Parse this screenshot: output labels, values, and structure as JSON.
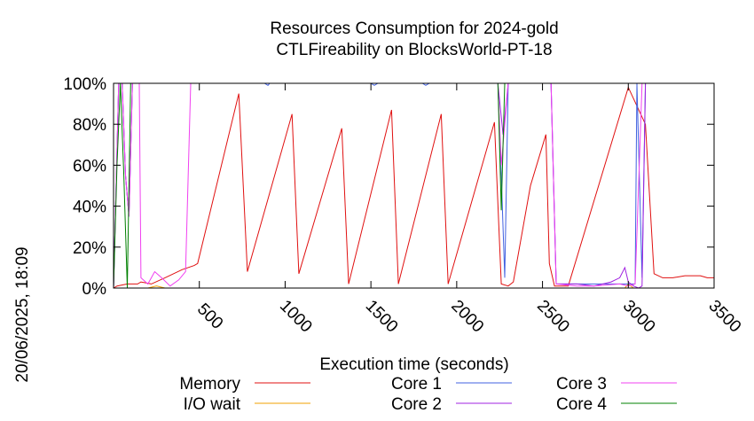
{
  "chart_data": {
    "type": "line",
    "title": [
      "Resources Consumption for 2024-gold",
      "CTLFireability on BlocksWorld-PT-18"
    ],
    "xlabel": "Execution time (seconds)",
    "ylabel": "",
    "side_label": "20/06/2025, 18:09",
    "xlim": [
      0,
      3500
    ],
    "ylim": [
      0,
      100
    ],
    "x_ticks": [
      500,
      1000,
      1500,
      2000,
      2500,
      3000,
      3500
    ],
    "y_ticks": [
      0,
      20,
      40,
      60,
      80,
      100
    ],
    "y_tick_suffix": "%",
    "grid": false,
    "legend_position": "bottom",
    "series": [
      {
        "name": "Memory",
        "color": "#e01010",
        "points": [
          [
            0,
            0
          ],
          [
            20,
            1
          ],
          [
            80,
            2
          ],
          [
            140,
            2
          ],
          [
            160,
            3
          ],
          [
            220,
            2
          ],
          [
            300,
            5
          ],
          [
            400,
            9
          ],
          [
            470,
            11
          ],
          [
            490,
            12
          ],
          [
            730,
            95
          ],
          [
            780,
            8
          ],
          [
            1040,
            85
          ],
          [
            1080,
            7
          ],
          [
            1330,
            78
          ],
          [
            1370,
            2
          ],
          [
            1620,
            87
          ],
          [
            1660,
            2
          ],
          [
            1910,
            85
          ],
          [
            1950,
            2
          ],
          [
            2220,
            81
          ],
          [
            2260,
            2
          ],
          [
            2300,
            1
          ],
          [
            2330,
            3
          ],
          [
            2430,
            50
          ],
          [
            2520,
            75
          ],
          [
            2540,
            12
          ],
          [
            2570,
            1
          ],
          [
            2650,
            1
          ],
          [
            3000,
            98
          ],
          [
            3100,
            80
          ],
          [
            3150,
            7
          ],
          [
            3200,
            5
          ],
          [
            3260,
            5
          ],
          [
            3330,
            6
          ],
          [
            3420,
            6
          ],
          [
            3460,
            5
          ],
          [
            3500,
            5
          ]
        ]
      },
      {
        "name": "I/O wait",
        "color": "#f0a000",
        "points": [
          [
            0,
            0
          ],
          [
            200,
            0
          ],
          [
            250,
            1
          ],
          [
            300,
            0
          ],
          [
            2980,
            0
          ],
          [
            3000,
            2
          ],
          [
            3030,
            0
          ],
          [
            3500,
            0
          ]
        ]
      },
      {
        "name": "Core 1",
        "color": "#4060e0",
        "points": [
          [
            0,
            0
          ],
          [
            30,
            100
          ],
          [
            50,
            100
          ],
          [
            70,
            55
          ],
          [
            90,
            35
          ],
          [
            110,
            100
          ],
          [
            880,
            100
          ],
          [
            900,
            99
          ],
          [
            910,
            100
          ],
          [
            1500,
            100
          ],
          [
            1520,
            99
          ],
          [
            1540,
            100
          ],
          [
            1800,
            100
          ],
          [
            1820,
            99
          ],
          [
            1840,
            100
          ],
          [
            2240,
            100
          ],
          [
            2260,
            55
          ],
          [
            2280,
            5
          ],
          [
            2300,
            100
          ],
          [
            2550,
            100
          ],
          [
            2580,
            2
          ],
          [
            3040,
            2
          ],
          [
            3050,
            100
          ],
          [
            3080,
            5
          ],
          [
            3100,
            100
          ],
          [
            3500,
            100
          ]
        ]
      },
      {
        "name": "Core 2",
        "color": "#a020e0",
        "points": [
          [
            0,
            0
          ],
          [
            30,
            100
          ],
          [
            50,
            100
          ],
          [
            70,
            55
          ],
          [
            90,
            35
          ],
          [
            110,
            100
          ],
          [
            2240,
            100
          ],
          [
            2270,
            75
          ],
          [
            2300,
            100
          ],
          [
            2550,
            100
          ],
          [
            2580,
            2
          ],
          [
            2700,
            2
          ],
          [
            2800,
            1
          ],
          [
            2900,
            3
          ],
          [
            2950,
            5
          ],
          [
            2980,
            10
          ],
          [
            3000,
            3
          ],
          [
            3030,
            1
          ],
          [
            3060,
            0
          ],
          [
            3080,
            1
          ],
          [
            3100,
            100
          ],
          [
            3500,
            100
          ]
        ]
      },
      {
        "name": "Core 3",
        "color": "#f040f0",
        "points": [
          [
            0,
            0
          ],
          [
            30,
            100
          ],
          [
            50,
            100
          ],
          [
            70,
            55
          ],
          [
            90,
            35
          ],
          [
            110,
            100
          ],
          [
            150,
            100
          ],
          [
            160,
            5
          ],
          [
            200,
            2
          ],
          [
            240,
            8
          ],
          [
            280,
            5
          ],
          [
            330,
            1
          ],
          [
            380,
            4
          ],
          [
            420,
            8
          ],
          [
            450,
            100
          ],
          [
            2240,
            100
          ],
          [
            2260,
            60
          ],
          [
            2300,
            100
          ],
          [
            2550,
            100
          ],
          [
            2580,
            2
          ],
          [
            2700,
            1
          ],
          [
            2800,
            1
          ],
          [
            2950,
            2
          ],
          [
            3000,
            1
          ],
          [
            3040,
            2
          ],
          [
            3060,
            50
          ],
          [
            3080,
            100
          ],
          [
            3500,
            100
          ]
        ]
      },
      {
        "name": "Core 4",
        "color": "#008000",
        "points": [
          [
            0,
            0
          ],
          [
            20,
            60
          ],
          [
            40,
            100
          ],
          [
            60,
            55
          ],
          [
            80,
            0
          ],
          [
            100,
            100
          ],
          [
            2240,
            100
          ],
          [
            2260,
            38
          ],
          [
            2280,
            100
          ],
          [
            3500,
            100
          ]
        ]
      }
    ]
  }
}
